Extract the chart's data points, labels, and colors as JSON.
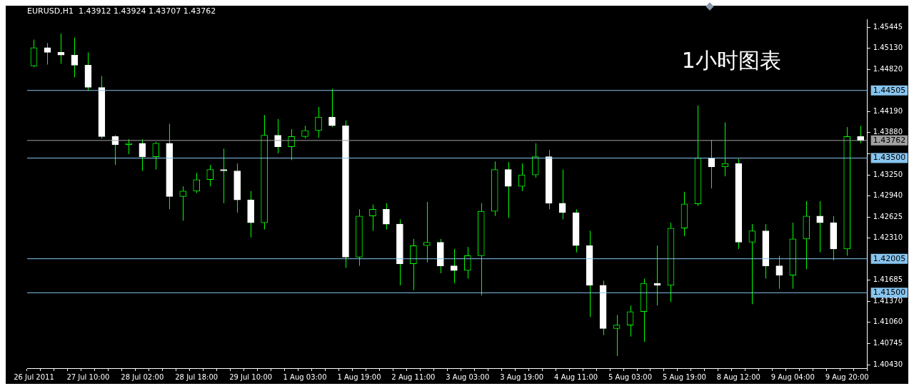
{
  "chart_data": {
    "type": "candlestick",
    "title": "EURUSD,H1  1.43912 1.43924 1.43707 1.43762",
    "annotations": [
      "1小时图表"
    ],
    "categories": [
      "26 Jul 2011",
      null,
      null,
      null,
      "27 Jul 10:00",
      null,
      null,
      null,
      "28 Jul 02:00",
      null,
      null,
      null,
      "28 Jul 18:00",
      null,
      null,
      null,
      "29 Jul 10:00",
      null,
      null,
      null,
      "1 Aug 03:00",
      null,
      null,
      null,
      "1 Aug 19:00",
      null,
      null,
      null,
      "2 Aug 11:00",
      null,
      null,
      null,
      "3 Aug 03:00",
      null,
      null,
      null,
      "3 Aug 19:00",
      null,
      null,
      null,
      "4 Aug 11:00",
      null,
      null,
      null,
      "5 Aug 03:00",
      null,
      null,
      null,
      "5 Aug 19:00",
      null,
      null,
      null,
      "8 Aug 12:00",
      null,
      null,
      null,
      "9 Aug 04:00",
      null,
      null,
      null,
      "9 Aug 20:00",
      null
    ],
    "ohlc": [
      [
        1.4487,
        1.4526,
        1.4485,
        1.4514
      ],
      [
        1.4514,
        1.4521,
        1.4489,
        1.4507
      ],
      [
        1.4507,
        1.4535,
        1.449,
        1.4503
      ],
      [
        1.4503,
        1.4529,
        1.447,
        1.4488
      ],
      [
        1.4488,
        1.4507,
        1.445,
        1.4455
      ],
      [
        1.4455,
        1.4472,
        1.4379,
        1.4382
      ],
      [
        1.4382,
        1.4384,
        1.434,
        1.437
      ],
      [
        1.437,
        1.4378,
        1.4356,
        1.4372
      ],
      [
        1.4372,
        1.4378,
        1.4331,
        1.4352
      ],
      [
        1.4352,
        1.4374,
        1.4333,
        1.4372
      ],
      [
        1.4372,
        1.4401,
        1.4274,
        1.4293
      ],
      [
        1.4293,
        1.4308,
        1.4257,
        1.4301
      ],
      [
        1.4301,
        1.4328,
        1.4298,
        1.4318
      ],
      [
        1.4318,
        1.434,
        1.4308,
        1.4333
      ],
      [
        1.4333,
        1.4364,
        1.4283,
        1.4331
      ],
      [
        1.4331,
        1.4342,
        1.4269,
        1.4288
      ],
      [
        1.4288,
        1.4301,
        1.4232,
        1.4254
      ],
      [
        1.4254,
        1.4414,
        1.4244,
        1.4384
      ],
      [
        1.4384,
        1.4408,
        1.4357,
        1.4367
      ],
      [
        1.4367,
        1.4393,
        1.4347,
        1.4382
      ],
      [
        1.4382,
        1.4398,
        1.4379,
        1.4391
      ],
      [
        1.4391,
        1.4426,
        1.438,
        1.4411
      ],
      [
        1.4411,
        1.4453,
        1.4396,
        1.4398
      ],
      [
        1.4398,
        1.4406,
        1.4187,
        1.4203
      ],
      [
        1.4203,
        1.4274,
        1.419,
        1.4264
      ],
      [
        1.4264,
        1.4281,
        1.4242,
        1.4274
      ],
      [
        1.4274,
        1.4283,
        1.4244,
        1.4252
      ],
      [
        1.4252,
        1.4259,
        1.4161,
        1.4193
      ],
      [
        1.4193,
        1.423,
        1.4154,
        1.422
      ],
      [
        1.422,
        1.4285,
        1.4195,
        1.4225
      ],
      [
        1.4225,
        1.423,
        1.4179,
        1.419
      ],
      [
        1.419,
        1.4215,
        1.4164,
        1.4183
      ],
      [
        1.4183,
        1.4218,
        1.4171,
        1.4205
      ],
      [
        1.4205,
        1.4283,
        1.4146,
        1.4271
      ],
      [
        1.4271,
        1.4345,
        1.4264,
        1.4333
      ],
      [
        1.4333,
        1.4344,
        1.4261,
        1.4308
      ],
      [
        1.4308,
        1.4342,
        1.4301,
        1.4325
      ],
      [
        1.4325,
        1.4372,
        1.4321,
        1.4352
      ],
      [
        1.4352,
        1.4362,
        1.4274,
        1.4283
      ],
      [
        1.4283,
        1.4333,
        1.4259,
        1.4269
      ],
      [
        1.4269,
        1.4274,
        1.421,
        1.422
      ],
      [
        1.422,
        1.4242,
        1.4114,
        1.4161
      ],
      [
        1.4161,
        1.4168,
        1.4087,
        1.4097
      ],
      [
        1.4097,
        1.4117,
        1.4056,
        1.4102
      ],
      [
        1.4102,
        1.4131,
        1.4085,
        1.4122
      ],
      [
        1.4122,
        1.4171,
        1.4077,
        1.4164
      ],
      [
        1.4164,
        1.422,
        1.4131,
        1.4161
      ],
      [
        1.4161,
        1.4254,
        1.4136,
        1.4246
      ],
      [
        1.4246,
        1.43,
        1.4234,
        1.4282
      ],
      [
        1.4282,
        1.4428,
        1.4279,
        1.435
      ],
      [
        1.435,
        1.4377,
        1.4305,
        1.4337
      ],
      [
        1.4337,
        1.4403,
        1.4323,
        1.4342
      ],
      [
        1.4342,
        1.4349,
        1.4215,
        1.4225
      ],
      [
        1.4225,
        1.4252,
        1.4133,
        1.4242
      ],
      [
        1.4242,
        1.4252,
        1.4171,
        1.419
      ],
      [
        1.419,
        1.4205,
        1.4156,
        1.4176
      ],
      [
        1.4176,
        1.4254,
        1.4156,
        1.423
      ],
      [
        1.423,
        1.4286,
        1.4185,
        1.4264
      ],
      [
        1.4264,
        1.4286,
        1.421,
        1.4254
      ],
      [
        1.4254,
        1.4264,
        1.4198,
        1.4215
      ],
      [
        1.4215,
        1.4396,
        1.4205,
        1.4382
      ],
      [
        1.4382,
        1.4398,
        1.4372,
        1.4376
      ]
    ],
    "color": "#00ff00",
    "colors": [
      "#00ff00",
      "#ffffff",
      "#ffffff",
      "#ffffff",
      "#ffffff",
      "#ffffff",
      "#ffffff",
      "#00ff00",
      "#ffffff",
      "#00ff00",
      "#ffffff",
      "#00ff00",
      "#00ff00",
      "#00ff00",
      "#ffffff",
      "#ffffff",
      "#ffffff",
      "#00ff00",
      "#ffffff",
      "#00ff00",
      "#00ff00",
      "#00ff00",
      "#ffffff",
      "#ffffff",
      "#00ff00",
      "#00ff00",
      "#ffffff",
      "#ffffff",
      "#00ff00",
      "#00ff00",
      "#ffffff",
      "#ffffff",
      "#00ff00",
      "#00ff00",
      "#00ff00",
      "#ffffff",
      "#00ff00",
      "#00ff00",
      "#ffffff",
      "#ffffff",
      "#ffffff",
      "#ffffff",
      "#ffffff",
      "#00ff00",
      "#00ff00",
      "#00ff00",
      "#ffffff",
      "#00ff00",
      "#00ff00",
      "#00ff00",
      "#ffffff",
      "#00ff00",
      "#ffffff",
      "#00ff00",
      "#ffffff",
      "#ffffff",
      "#00ff00",
      "#00ff00",
      "#ffffff",
      "#ffffff",
      "#00ff00",
      "#ffffff"
    ],
    "ylim": [
      1.4038,
      1.4556
    ],
    "yticks": [
      {
        "value": 1.45445,
        "label": "1.45445"
      },
      {
        "value": 1.4513,
        "label": "1.45130"
      },
      {
        "value": 1.4482,
        "label": "1.44820"
      },
      {
        "value": 1.4419,
        "label": "1.44190"
      },
      {
        "value": 1.4388,
        "label": "1.43880"
      },
      {
        "value": 1.43565,
        "label": null
      },
      {
        "value": 1.4325,
        "label": "1.43250"
      },
      {
        "value": 1.4294,
        "label": "1.42940"
      },
      {
        "value": 1.42625,
        "label": "1.42625"
      },
      {
        "value": 1.4231,
        "label": "1.42310"
      },
      {
        "value": 1.41685,
        "label": "1.41685"
      },
      {
        "value": 1.4137,
        "label": "1.41370"
      },
      {
        "value": 1.4106,
        "label": "1.41060"
      },
      {
        "value": 1.40745,
        "label": "1.40745"
      },
      {
        "value": 1.4043,
        "label": "1.40430"
      }
    ],
    "ref_lines": [
      {
        "axis": "y",
        "value": 1.44505,
        "label": "1.44505",
        "color": "#87c4ee"
      },
      {
        "axis": "y",
        "value": 1.43762,
        "label": "1.43762",
        "color": "#a0a0a0"
      },
      {
        "axis": "y",
        "value": 1.435,
        "label": "1.43500",
        "color": "#87c4ee"
      },
      {
        "axis": "y",
        "value": 1.42005,
        "label": "1.42005",
        "color": "#87c4ee"
      },
      {
        "axis": "y",
        "value": 1.415,
        "label": "1.41500",
        "color": "#87c4ee"
      }
    ],
    "grid": false,
    "legend": false
  }
}
